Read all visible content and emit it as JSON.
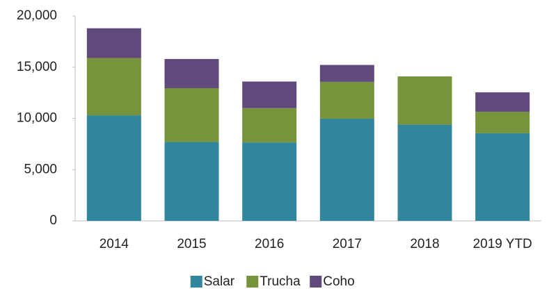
{
  "chart_data": {
    "type": "stacked_bar",
    "categories": [
      "2014",
      "2015",
      "2016",
      "2017",
      "2018",
      "2019 YTD"
    ],
    "series": [
      {
        "name": "Salar",
        "color": "#31859c",
        "values": [
          10300,
          7700,
          7650,
          9970,
          9400,
          8550
        ]
      },
      {
        "name": "Trucha",
        "color": "#77933c",
        "values": [
          5600,
          5250,
          3350,
          3600,
          4700,
          2100
        ]
      },
      {
        "name": "Coho",
        "color": "#604a7b",
        "values": [
          2900,
          2850,
          2600,
          1650,
          0,
          1900
        ]
      }
    ],
    "ylim": [
      0,
      20000
    ],
    "yticks": [
      0,
      {
        "value": 5000,
        "label": "5,000"
      },
      {
        "value": 10000,
        "label": "10,000"
      },
      {
        "value": 15000,
        "label": "15,000"
      },
      {
        "value": 20000,
        "label": "20,000"
      }
    ],
    "legend": "bottom"
  }
}
